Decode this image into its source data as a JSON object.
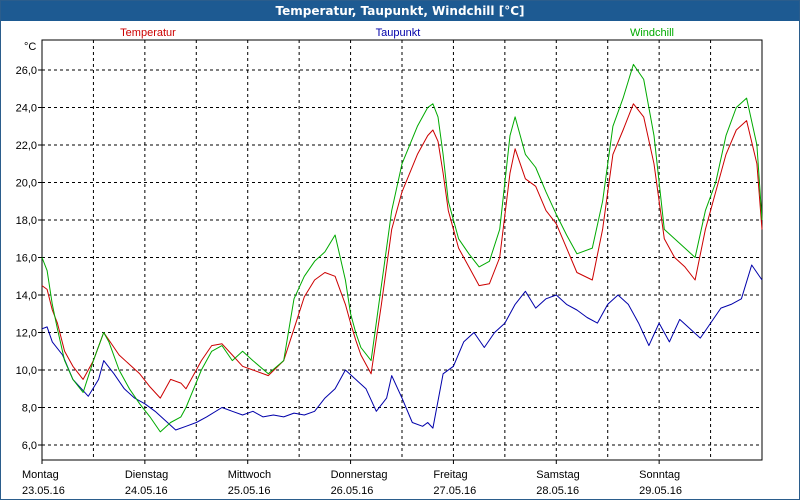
{
  "window": {
    "title": "Temperatur, Taupunkt, Windchill [°C]"
  },
  "chart_data": {
    "type": "line",
    "title": "Temperatur, Taupunkt, Windchill [°C]",
    "ylabel": "°C",
    "ylim": [
      5.2,
      27.6
    ],
    "xlim": [
      0,
      7
    ],
    "yticks": [
      6,
      8,
      10,
      12,
      14,
      16,
      18,
      20,
      22,
      24,
      26
    ],
    "ytick_labels": [
      "6,0",
      "8,0",
      "10,0",
      "12,0",
      "14,0",
      "16,0",
      "18,0",
      "20,0",
      "22,0",
      "24,0",
      "26,0"
    ],
    "xticks": [
      {
        "x": 0,
        "day": "Montag",
        "date": "23.05.16"
      },
      {
        "x": 1,
        "day": "Dienstag",
        "date": "24.05.16"
      },
      {
        "x": 2,
        "day": "Mittwoch",
        "date": "25.05.16"
      },
      {
        "x": 3,
        "day": "Donnerstag",
        "date": "26.05.16"
      },
      {
        "x": 4,
        "day": "Freitag",
        "date": "27.05.16"
      },
      {
        "x": 5,
        "day": "Samstag",
        "date": "28.05.16"
      },
      {
        "x": 6,
        "day": "Sonntag",
        "date": "29.05.16"
      }
    ],
    "grid": true,
    "series": [
      {
        "name": "Temperatur",
        "color": "#cc0000",
        "x": [
          0,
          0.05,
          0.1,
          0.15,
          0.22,
          0.3,
          0.4,
          0.5,
          0.6,
          0.65,
          0.75,
          0.85,
          0.95,
          1.05,
          1.15,
          1.25,
          1.35,
          1.4,
          1.55,
          1.65,
          1.75,
          1.85,
          1.95,
          2.05,
          2.2,
          2.35,
          2.45,
          2.55,
          2.65,
          2.75,
          2.85,
          2.95,
          3.0,
          3.05,
          3.1,
          3.2,
          3.3,
          3.4,
          3.5,
          3.65,
          3.75,
          3.8,
          3.85,
          3.9,
          3.95,
          4.05,
          4.15,
          4.25,
          4.35,
          4.45,
          4.55,
          4.6,
          4.7,
          4.8,
          4.9,
          5.0,
          5.1,
          5.2,
          5.35,
          5.45,
          5.55,
          5.65,
          5.75,
          5.85,
          5.95,
          6.05,
          6.15,
          6.25,
          6.35,
          6.45,
          6.55,
          6.65,
          6.75,
          6.85,
          6.95,
          7.0
        ],
        "values": [
          14.5,
          14.3,
          13.2,
          12.5,
          11.0,
          10.2,
          9.5,
          10.5,
          12.0,
          11.6,
          10.8,
          10.3,
          9.8,
          9.1,
          8.5,
          9.5,
          9.3,
          9.0,
          10.5,
          11.3,
          11.4,
          10.8,
          10.2,
          10.0,
          9.7,
          10.5,
          12.2,
          13.9,
          14.8,
          15.2,
          15.0,
          13.5,
          12.5,
          11.6,
          10.8,
          9.8,
          13.5,
          17.5,
          19.5,
          21.5,
          22.5,
          22.8,
          22.2,
          20.5,
          18.5,
          16.5,
          15.5,
          14.5,
          14.6,
          16.0,
          20.5,
          21.8,
          20.2,
          19.8,
          18.5,
          17.8,
          16.5,
          15.2,
          14.8,
          17.5,
          21.5,
          22.8,
          24.2,
          23.5,
          21.0,
          17.0,
          16.0,
          15.5,
          14.8,
          17.5,
          19.5,
          21.5,
          22.8,
          23.3,
          21.0,
          17.5
        ]
      },
      {
        "name": "Taupunkt",
        "color": "#0000aa",
        "x": [
          0,
          0.05,
          0.1,
          0.2,
          0.3,
          0.45,
          0.55,
          0.6,
          0.7,
          0.8,
          0.9,
          1.0,
          1.1,
          1.2,
          1.3,
          1.4,
          1.5,
          1.6,
          1.75,
          1.85,
          1.95,
          2.05,
          2.15,
          2.25,
          2.35,
          2.45,
          2.55,
          2.65,
          2.75,
          2.85,
          2.95,
          3.05,
          3.15,
          3.25,
          3.35,
          3.4,
          3.5,
          3.6,
          3.7,
          3.75,
          3.8,
          3.9,
          4.0,
          4.1,
          4.2,
          4.3,
          4.4,
          4.5,
          4.6,
          4.7,
          4.8,
          4.9,
          5.0,
          5.1,
          5.2,
          5.3,
          5.4,
          5.5,
          5.6,
          5.7,
          5.8,
          5.9,
          6.0,
          6.1,
          6.2,
          6.3,
          6.4,
          6.5,
          6.6,
          6.7,
          6.8,
          6.9,
          7.0
        ],
        "values": [
          12.2,
          12.3,
          11.5,
          10.8,
          9.5,
          8.6,
          9.5,
          10.5,
          9.8,
          9.0,
          8.5,
          8.2,
          7.8,
          7.3,
          6.8,
          7.0,
          7.2,
          7.5,
          8.0,
          7.8,
          7.6,
          7.8,
          7.5,
          7.6,
          7.5,
          7.7,
          7.6,
          7.8,
          8.5,
          9.0,
          10.0,
          9.5,
          9.0,
          7.8,
          8.5,
          9.7,
          8.5,
          7.2,
          7.0,
          7.2,
          6.9,
          9.8,
          10.2,
          11.5,
          12.0,
          11.2,
          12.0,
          12.5,
          13.5,
          14.2,
          13.3,
          13.8,
          14.0,
          13.5,
          13.2,
          12.8,
          12.5,
          13.5,
          14.0,
          13.5,
          12.5,
          11.3,
          12.5,
          11.5,
          12.7,
          12.2,
          11.7,
          12.5,
          13.3,
          13.5,
          13.8,
          15.6,
          14.8
        ]
      },
      {
        "name": "Windchill",
        "color": "#00aa00",
        "x": [
          0,
          0.05,
          0.1,
          0.15,
          0.22,
          0.3,
          0.4,
          0.5,
          0.6,
          0.65,
          0.75,
          0.85,
          0.95,
          1.05,
          1.15,
          1.25,
          1.35,
          1.4,
          1.55,
          1.65,
          1.75,
          1.85,
          1.95,
          2.05,
          2.2,
          2.35,
          2.45,
          2.55,
          2.65,
          2.75,
          2.85,
          2.95,
          3.0,
          3.05,
          3.1,
          3.2,
          3.3,
          3.4,
          3.5,
          3.65,
          3.75,
          3.8,
          3.85,
          3.9,
          3.95,
          4.05,
          4.15,
          4.25,
          4.35,
          4.45,
          4.55,
          4.6,
          4.7,
          4.8,
          4.9,
          5.0,
          5.1,
          5.2,
          5.35,
          5.45,
          5.55,
          5.65,
          5.75,
          5.85,
          5.95,
          6.05,
          6.15,
          6.25,
          6.35,
          6.45,
          6.55,
          6.65,
          6.75,
          6.85,
          6.95,
          7.0
        ],
        "values": [
          16.0,
          15.3,
          13.5,
          12.2,
          10.5,
          9.5,
          8.8,
          10.5,
          12.0,
          11.5,
          10.0,
          9.0,
          8.2,
          7.5,
          6.7,
          7.2,
          7.5,
          8.0,
          10.0,
          11.0,
          11.3,
          10.5,
          11.0,
          10.5,
          9.8,
          10.5,
          13.8,
          15.0,
          15.8,
          16.3,
          17.2,
          14.8,
          13.0,
          12.0,
          11.2,
          10.5,
          14.5,
          18.5,
          21.0,
          23.0,
          24.0,
          24.2,
          23.5,
          21.5,
          19.0,
          17.0,
          16.2,
          15.5,
          15.8,
          17.5,
          22.5,
          23.5,
          21.5,
          20.8,
          19.5,
          18.3,
          17.2,
          16.2,
          16.5,
          19.0,
          23.0,
          24.5,
          26.3,
          25.5,
          22.5,
          17.5,
          17.0,
          16.5,
          16.0,
          18.5,
          20.0,
          22.5,
          24.0,
          24.5,
          22.0,
          18.0
        ]
      }
    ]
  }
}
